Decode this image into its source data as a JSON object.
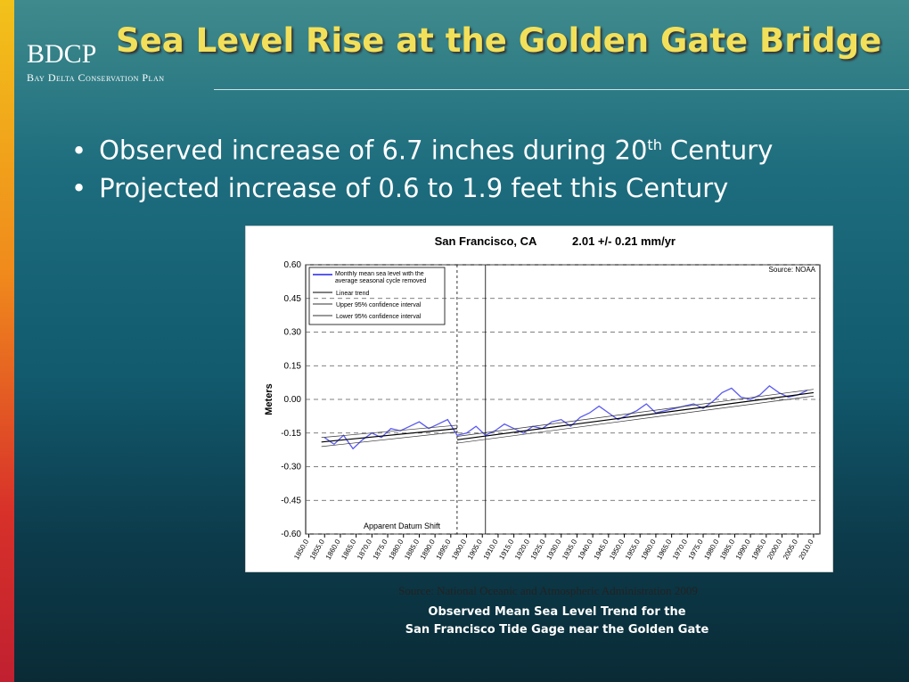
{
  "header": {
    "logo": "BDCP",
    "organization": "Bay Delta Conservation Plan",
    "title": "Sea Level Rise at the Golden Gate Bridge"
  },
  "bullets": [
    {
      "text": "Observed increase of 6.7 inches during 20",
      "superscript": "th",
      "suffix": " Century"
    },
    {
      "text": "Projected increase of 0.6 to 1.9 feet this Century"
    }
  ],
  "chart_data": {
    "type": "line",
    "title": "San Francisco, CA",
    "subtitle": "2.01 +/- 0.21 mm/yr",
    "y_label": "Meters",
    "source_note": "Source: NOAA",
    "annotation": "Apparent Datum Shift",
    "x": [
      1855,
      1858,
      1861,
      1864,
      1867,
      1870,
      1873,
      1876,
      1879,
      1882,
      1885,
      1888,
      1891,
      1894,
      1897,
      1900,
      1903,
      1906,
      1909,
      1912,
      1915,
      1918,
      1921,
      1924,
      1927,
      1930,
      1933,
      1936,
      1939,
      1942,
      1945,
      1948,
      1951,
      1954,
      1957,
      1960,
      1963,
      1966,
      1969,
      1972,
      1975,
      1978,
      1981,
      1984,
      1987,
      1990,
      1993,
      1996,
      1999,
      2002,
      2005,
      2008
    ],
    "series": [
      {
        "name": "Monthly mean sea level with the average seasonal cycle removed",
        "color": "#5a5af0",
        "values": [
          -0.17,
          -0.2,
          -0.16,
          -0.22,
          -0.18,
          -0.15,
          -0.17,
          -0.13,
          -0.14,
          -0.12,
          -0.1,
          -0.13,
          -0.11,
          -0.09,
          -0.16,
          -0.15,
          -0.12,
          -0.16,
          -0.14,
          -0.11,
          -0.13,
          -0.15,
          -0.12,
          -0.13,
          -0.1,
          -0.09,
          -0.12,
          -0.08,
          -0.06,
          -0.03,
          -0.06,
          -0.09,
          -0.07,
          -0.05,
          -0.02,
          -0.06,
          -0.05,
          -0.04,
          -0.03,
          -0.02,
          -0.04,
          -0.01,
          0.03,
          0.05,
          0.01,
          0.0,
          0.02,
          0.06,
          0.03,
          0.01,
          0.02,
          0.04
        ]
      }
    ],
    "trend_lines": [
      {
        "name": "Linear trend",
        "color": "#000000",
        "segments": [
          {
            "x": [
              1854,
              1897
            ],
            "values": [
              -0.19,
              -0.13
            ]
          },
          {
            "x": [
              1897,
              2010
            ],
            "values": [
              -0.18,
              0.03
            ]
          }
        ]
      },
      {
        "name": "Upper 95% confidence interval",
        "color": "#333333",
        "segments": [
          {
            "x": [
              1854,
              1897
            ],
            "values": [
              -0.17,
              -0.115
            ]
          },
          {
            "x": [
              1897,
              2010
            ],
            "values": [
              -0.165,
              0.045
            ]
          }
        ]
      },
      {
        "name": "Lower 95% confidence interval",
        "color": "#333333",
        "segments": [
          {
            "x": [
              1854,
              1897
            ],
            "values": [
              -0.21,
              -0.145
            ]
          },
          {
            "x": [
              1897,
              2010
            ],
            "values": [
              -0.195,
              0.015
            ]
          }
        ]
      }
    ],
    "vlines": [
      1897,
      1906
    ],
    "xlim": [
      1849,
      2012
    ],
    "xticks": [
      {
        "value": 1850,
        "label": "1850.0"
      },
      {
        "value": 1855,
        "label": "1855.0"
      },
      {
        "value": 1860,
        "label": "1860.0"
      },
      {
        "value": 1865,
        "label": "1865.0"
      },
      {
        "value": 1870,
        "label": "1870.0"
      },
      {
        "value": 1875,
        "label": "1875.0"
      },
      {
        "value": 1880,
        "label": "1880.0"
      },
      {
        "value": 1885,
        "label": "1885.0"
      },
      {
        "value": 1890,
        "label": "1890.0"
      },
      {
        "value": 1895,
        "label": "1895.0"
      },
      {
        "value": 1900,
        "label": "1900.0"
      },
      {
        "value": 1905,
        "label": "1905.0"
      },
      {
        "value": 1910,
        "label": "1910.0"
      },
      {
        "value": 1915,
        "label": "1915.0"
      },
      {
        "value": 1920,
        "label": "1920.0"
      },
      {
        "value": 1925,
        "label": "1925.0"
      },
      {
        "value": 1930,
        "label": "1930.0"
      },
      {
        "value": 1935,
        "label": "1935.0"
      },
      {
        "value": 1940,
        "label": "1940.0"
      },
      {
        "value": 1945,
        "label": "1945.0"
      },
      {
        "value": 1950,
        "label": "1950.0"
      },
      {
        "value": 1955,
        "label": "1955.0"
      },
      {
        "value": 1960,
        "label": "1960.0"
      },
      {
        "value": 1965,
        "label": "1965.0"
      },
      {
        "value": 1970,
        "label": "1970.0"
      },
      {
        "value": 1975,
        "label": "1975.0"
      },
      {
        "value": 1980,
        "label": "1980.0"
      },
      {
        "value": 1985,
        "label": "1985.0"
      },
      {
        "value": 1990,
        "label": "1990.0"
      },
      {
        "value": 1995,
        "label": "1995.0"
      },
      {
        "value": 2000,
        "label": "2000.0"
      },
      {
        "value": 2005,
        "label": "2005.0"
      },
      {
        "value": 2010,
        "label": "2010.0"
      }
    ],
    "ylim": [
      -0.6,
      0.6
    ],
    "yticks": [
      {
        "value": 0.6,
        "label": "0.60"
      },
      {
        "value": 0.45,
        "label": "0.45"
      },
      {
        "value": 0.3,
        "label": "0.30"
      },
      {
        "value": 0.15,
        "label": "0.15"
      },
      {
        "value": 0,
        "label": "0.00"
      },
      {
        "value": -0.15,
        "label": "-0.15"
      },
      {
        "value": -0.3,
        "label": "-0.30"
      },
      {
        "value": -0.45,
        "label": "-0.45"
      },
      {
        "value": -0.6,
        "label": "-0.60"
      }
    ],
    "grid": true
  },
  "footer": {
    "source": "Source: National Oceanic and Atmospheric Administration 2009",
    "caption": [
      "Observed Mean Sea Level Trend for the",
      "San Francisco Tide Gage near the Golden Gate"
    ]
  }
}
